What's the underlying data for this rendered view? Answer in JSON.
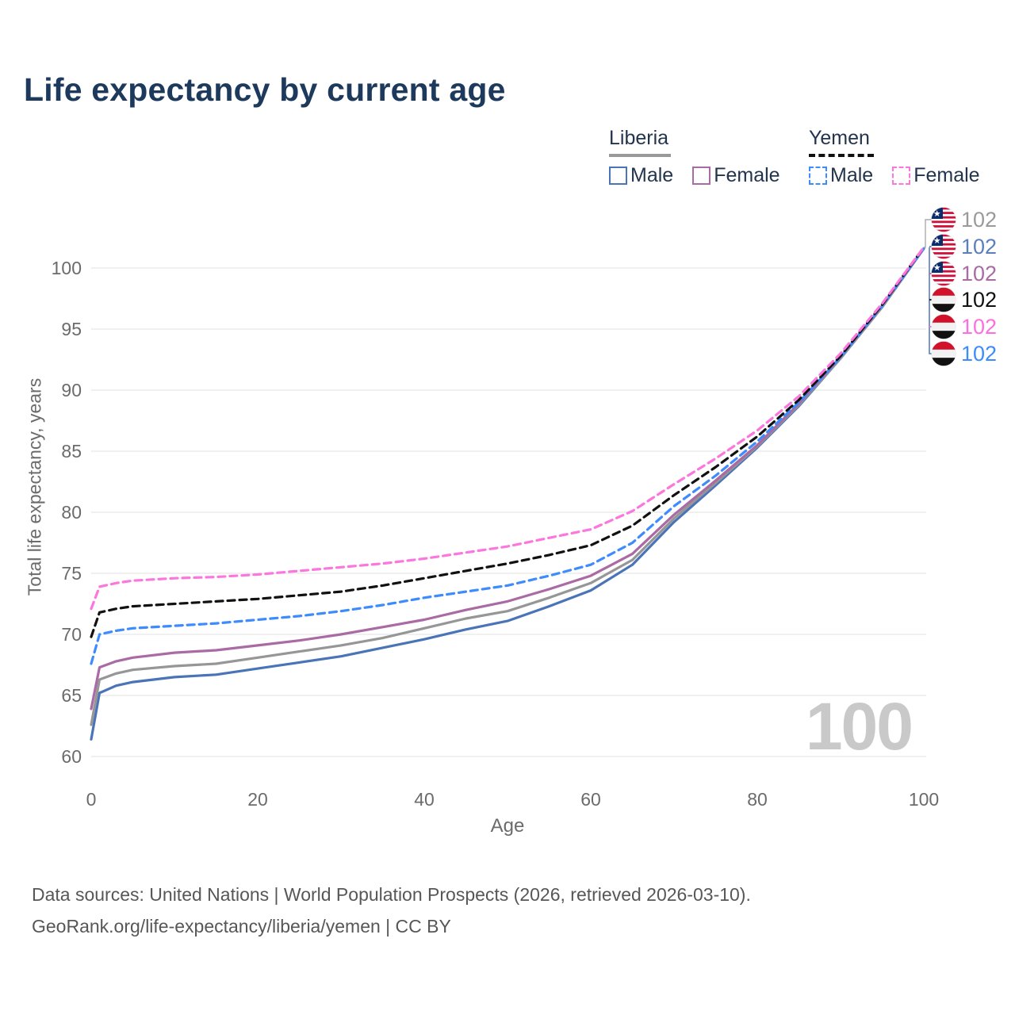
{
  "title": "Life expectancy by current age",
  "legend": {
    "groups": [
      {
        "country": "Liberia",
        "underline_style": "solid",
        "underline_color": "#999999",
        "items": [
          {
            "label": "Male",
            "color": "#4a74b8",
            "dashed": false
          },
          {
            "label": "Female",
            "color": "#aa6aa4",
            "dashed": false
          }
        ]
      },
      {
        "country": "Yemen",
        "underline_style": "dashed",
        "underline_color": "#111111",
        "items": [
          {
            "label": "Male",
            "color": "#3d8bfd",
            "dashed": true
          },
          {
            "label": "Female",
            "color": "#fc77dd",
            "dashed": true
          }
        ]
      }
    ]
  },
  "chart_data": {
    "type": "line",
    "title": "Life expectancy by current age",
    "xlabel": "Age",
    "ylabel": "Total life expectancy, years",
    "xlim": [
      0,
      100
    ],
    "ylim": [
      60,
      102
    ],
    "xticks": [
      0,
      20,
      40,
      60,
      80,
      100
    ],
    "yticks": [
      60,
      65,
      70,
      75,
      80,
      85,
      90,
      95,
      100
    ],
    "grid": "horizontal-only",
    "legend_position": "top-right",
    "watermark": "100",
    "x": [
      0,
      1,
      3,
      5,
      10,
      15,
      20,
      25,
      30,
      35,
      40,
      45,
      50,
      55,
      60,
      65,
      70,
      75,
      80,
      85,
      90,
      95,
      100
    ],
    "series": [
      {
        "name": "Liberia male",
        "country": "Liberia",
        "sex": "male",
        "color": "#4a74b8",
        "dashed": false,
        "values": [
          61.4,
          65.2,
          65.8,
          66.1,
          66.5,
          66.7,
          67.2,
          67.7,
          68.2,
          68.9,
          69.6,
          70.4,
          71.1,
          72.3,
          73.6,
          75.7,
          79.2,
          82.2,
          85.3,
          88.7,
          92.6,
          96.8,
          101.6
        ]
      },
      {
        "name": "Liberia total",
        "country": "Liberia",
        "sex": "both",
        "color": "#969696",
        "dashed": false,
        "values": [
          62.6,
          66.3,
          66.8,
          67.1,
          67.4,
          67.6,
          68.1,
          68.6,
          69.1,
          69.7,
          70.5,
          71.3,
          71.9,
          73.0,
          74.2,
          76.1,
          79.5,
          82.4,
          85.4,
          88.8,
          92.6,
          96.8,
          101.6
        ]
      },
      {
        "name": "Liberia female",
        "country": "Liberia",
        "sex": "female",
        "color": "#aa6aa4",
        "dashed": false,
        "values": [
          63.9,
          67.3,
          67.8,
          68.1,
          68.5,
          68.7,
          69.1,
          69.5,
          70.0,
          70.6,
          71.2,
          72.0,
          72.7,
          73.7,
          74.8,
          76.6,
          79.8,
          82.6,
          85.5,
          88.9,
          92.7,
          96.9,
          101.6
        ]
      },
      {
        "name": "Yemen male",
        "country": "Yemen",
        "sex": "male",
        "color": "#3d8bfd",
        "dashed": true,
        "values": [
          67.6,
          70.0,
          70.3,
          70.5,
          70.7,
          70.9,
          71.2,
          71.5,
          71.9,
          72.4,
          73.0,
          73.5,
          74.0,
          74.8,
          75.7,
          77.5,
          80.5,
          83.0,
          85.8,
          89.0,
          92.7,
          96.9,
          101.6
        ]
      },
      {
        "name": "Yemen total",
        "country": "Yemen",
        "sex": "both",
        "color": "#111111",
        "dashed": true,
        "values": [
          69.8,
          71.8,
          72.1,
          72.3,
          72.5,
          72.7,
          72.9,
          73.2,
          73.5,
          74.0,
          74.6,
          75.2,
          75.8,
          76.5,
          77.3,
          78.9,
          81.4,
          83.7,
          86.2,
          89.2,
          92.8,
          97.0,
          101.7
        ]
      },
      {
        "name": "Yemen female",
        "country": "Yemen",
        "sex": "female",
        "color": "#fc77dd",
        "dashed": true,
        "values": [
          72.1,
          73.9,
          74.2,
          74.4,
          74.6,
          74.7,
          74.9,
          75.2,
          75.5,
          75.8,
          76.2,
          76.7,
          77.2,
          77.9,
          78.6,
          80.1,
          82.3,
          84.4,
          86.7,
          89.5,
          93.0,
          97.1,
          101.7
        ]
      }
    ],
    "end_labels": [
      {
        "flag": "liberia",
        "value": "102",
        "color": "#9a9a9a",
        "series": "Liberia total"
      },
      {
        "flag": "liberia",
        "value": "102",
        "color": "#5b7fbd",
        "series": "Liberia male"
      },
      {
        "flag": "liberia",
        "value": "102",
        "color": "#aa6aa4",
        "series": "Liberia female"
      },
      {
        "flag": "yemen",
        "value": "102",
        "color": "#111111",
        "series": "Yemen total"
      },
      {
        "flag": "yemen",
        "value": "102",
        "color": "#fd6fe0",
        "series": "Yemen female"
      },
      {
        "flag": "yemen",
        "value": "102",
        "color": "#3d8bfd",
        "series": "Yemen male"
      }
    ],
    "flag_colors": {
      "liberia_red": "#d0103a",
      "liberia_blue": "#0b2d6b",
      "liberia_white": "#ffffff",
      "yemen_red": "#d2122a",
      "yemen_white": "#f2f2f2",
      "yemen_black": "#111111"
    },
    "style": {
      "gridline_color": "#ebebeb",
      "tick_label_color": "#6b6b6b",
      "watermark_color": "#c9c9c9"
    }
  },
  "footer": {
    "line1": "Data sources: United Nations | World Population Prospects (2026, retrieved 2026-03-10).",
    "line2": "GeoRank.org/life-expectancy/liberia/yemen | CC BY"
  }
}
